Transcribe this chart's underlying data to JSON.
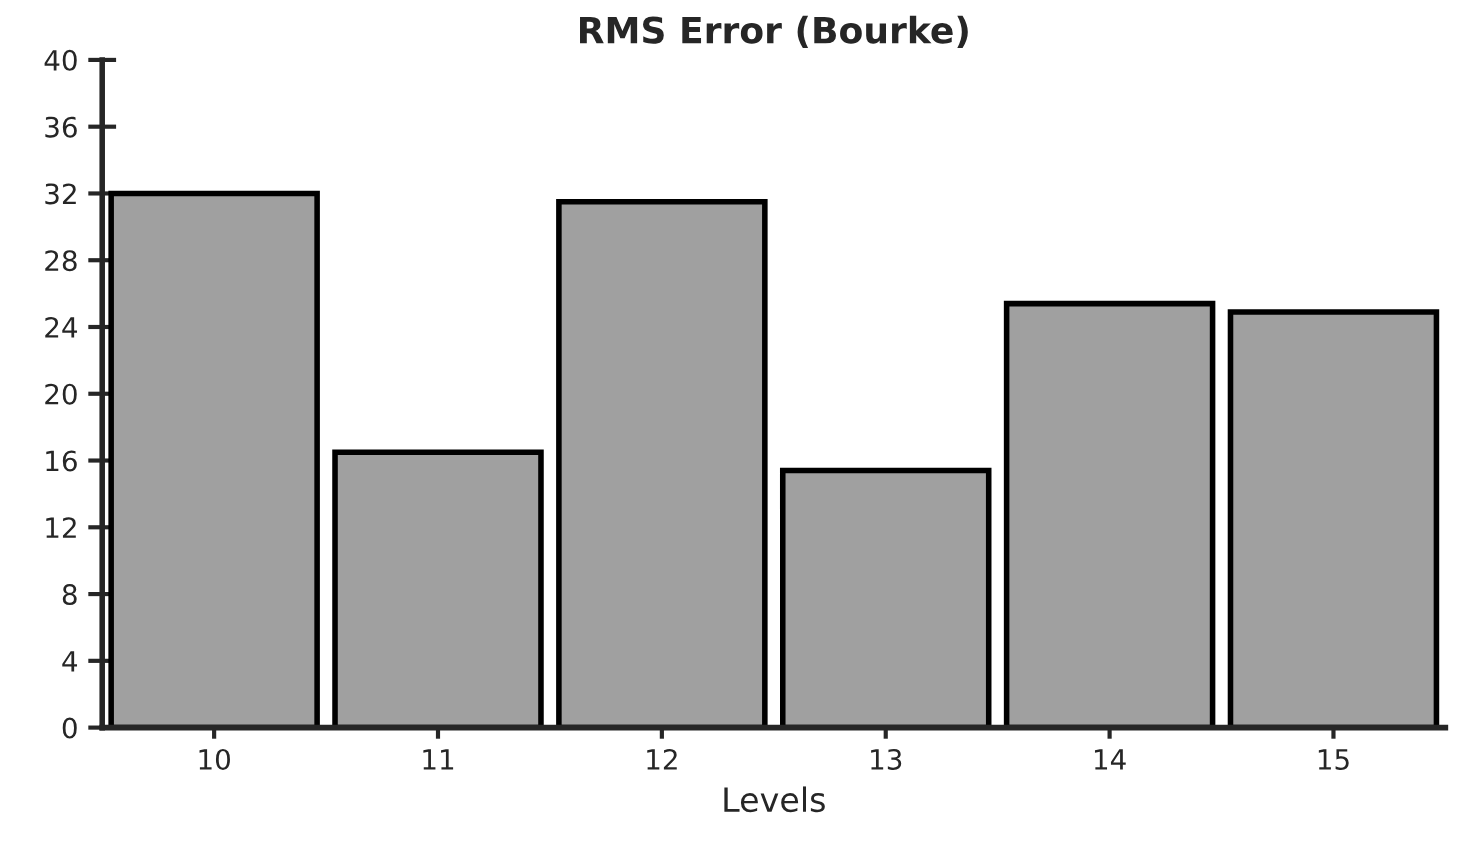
{
  "chart_data": {
    "type": "bar",
    "title": "RMS Error (Bourke)",
    "xlabel": "Levels",
    "categories": [
      "10",
      "11",
      "12",
      "13",
      "14",
      "15"
    ],
    "values": [
      32,
      16.5,
      31.5,
      15.4,
      25.4,
      24.9
    ],
    "color": "#a0a0a0",
    "ylim": [
      0,
      40
    ],
    "yticks": [
      0,
      4,
      8,
      12,
      16,
      20,
      24,
      28,
      32,
      36,
      40
    ],
    "grid": false
  }
}
